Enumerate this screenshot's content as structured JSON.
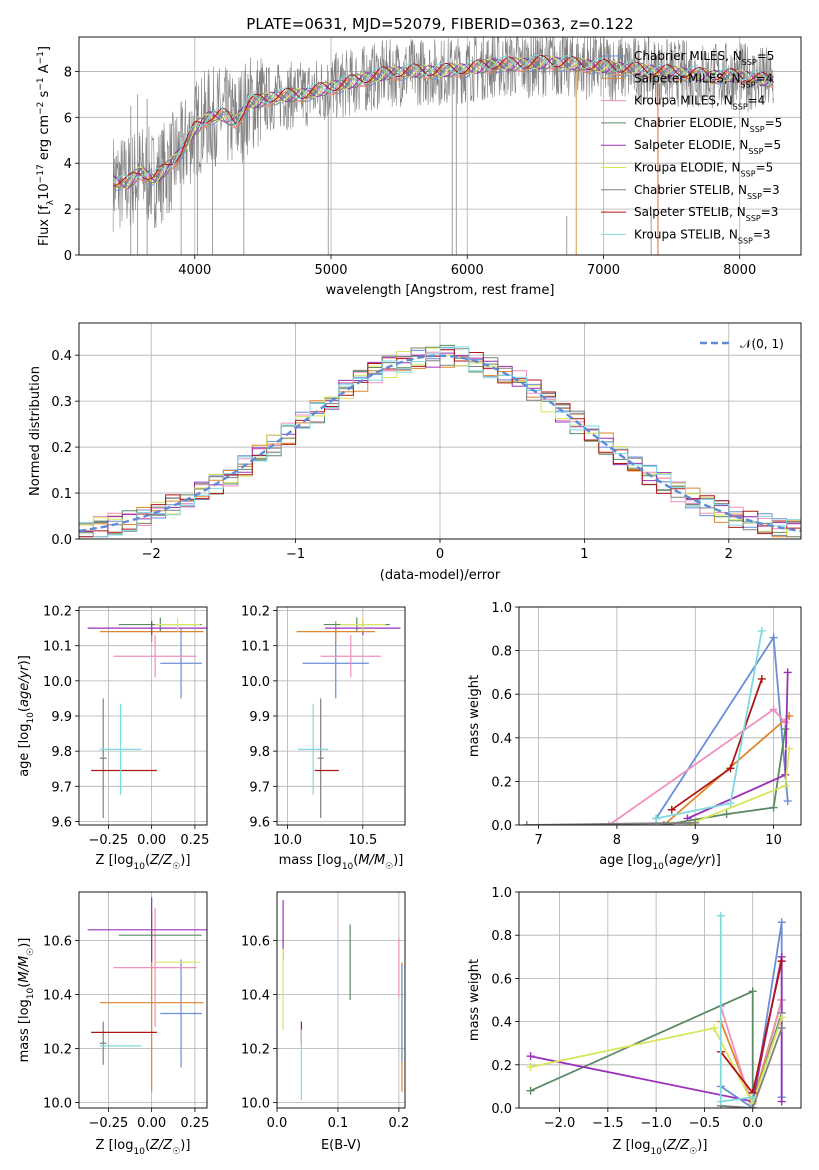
{
  "figure": {
    "title": "PLATE=0631, MJD=52079, FIBERID=0363, z=0.122"
  },
  "colors": {
    "Chabrier MILES": "#6a8fd6",
    "Salpeter MILES": "#e0862a",
    "Kroupa MILES": "#f08fc0",
    "Chabrier ELODIE": "#5c8a65",
    "Salpeter ELODIE": "#9b30b8",
    "Kroupa ELODIE": "#d8e65a",
    "Chabrier STELIB": "#808080",
    "Salpeter STELIB": "#b01515",
    "Kroupa STELIB": "#7fd9e0",
    "data": "#808080",
    "normal": "#5f8ad8"
  },
  "chart_data": [
    {
      "id": "spectrum",
      "type": "line",
      "xlabel": "wavelength [Angstrom, rest frame]",
      "ylabel": "Flux [f_λ10^-17 erg cm^-2 s^-1 A^-1]",
      "xlim": [
        3150,
        8450
      ],
      "ylim": [
        0,
        9.5
      ],
      "xticks": [
        4000,
        5000,
        6000,
        7000,
        8000
      ],
      "yticks": [
        0,
        2,
        4,
        6,
        8
      ],
      "legend_placement": "upper right",
      "legend": [
        {
          "name": "Chabrier MILES",
          "n": "5"
        },
        {
          "name": "Salpeter MILES",
          "n": "4"
        },
        {
          "name": "Kroupa MILES",
          "n": "4"
        },
        {
          "name": "Chabrier ELODIE",
          "n": "5"
        },
        {
          "name": "Salpeter ELODIE",
          "n": "5"
        },
        {
          "name": "Kroupa ELODIE",
          "n": "5"
        },
        {
          "name": "Chabrier STELIB",
          "n": "3"
        },
        {
          "name": "Salpeter STELIB",
          "n": "3"
        },
        {
          "name": "Kroupa STELIB",
          "n": "3"
        }
      ],
      "continuum": {
        "x": [
          3400,
          3500,
          3600,
          3700,
          3800,
          3900,
          4000,
          4100,
          4200,
          4300,
          4400,
          4600,
          4800,
          5000,
          5200,
          5400,
          5600,
          5800,
          6000,
          6200,
          6400,
          6600,
          6800,
          7000,
          7200,
          7400,
          7600,
          7800,
          8000,
          8200
        ],
        "y": [
          3.2,
          3.1,
          3.6,
          3.3,
          3.8,
          4.5,
          5.5,
          6.0,
          6.1,
          5.8,
          6.6,
          6.9,
          7.0,
          7.3,
          7.6,
          7.9,
          8.0,
          8.0,
          8.1,
          8.3,
          8.3,
          8.4,
          8.3,
          8.2,
          8.1,
          8.0,
          7.9,
          7.8,
          7.8,
          7.6
        ]
      }
    },
    {
      "id": "residuals",
      "type": "line",
      "xlabel": "(data-model)/error",
      "ylabel": "Normed distribution",
      "xlim": [
        -2.5,
        2.5
      ],
      "ylim": [
        0,
        0.47
      ],
      "xticks": [
        -2,
        -1,
        0,
        1,
        2
      ],
      "yticks": [
        0.0,
        0.1,
        0.2,
        0.3,
        0.4
      ],
      "legend": "𝒩(0, 1)",
      "bin_width": 0.1
    },
    {
      "id": "age_vs_Z",
      "type": "scatter",
      "xlabel": "Z [log10(Z/Z☉)]",
      "ylabel": "age  [log10(age/yr)]",
      "xlim": [
        -0.42,
        0.32
      ],
      "ylim": [
        9.59,
        10.21
      ],
      "xticks": [
        -0.25,
        0.0,
        0.25
      ],
      "yticks": [
        9.6,
        9.7,
        9.8,
        9.9,
        10.0,
        10.1,
        10.2
      ],
      "points": [
        {
          "s": "Chabrier MILES",
          "x": 0.17,
          "y": 10.05,
          "xe": 0.12,
          "ye": 0.1
        },
        {
          "s": "Salpeter MILES",
          "x": 0.0,
          "y": 10.14,
          "xe": 0.3,
          "ye": 0.03
        },
        {
          "s": "Kroupa MILES",
          "x": 0.02,
          "y": 10.07,
          "xe": 0.24,
          "ye": 0.06
        },
        {
          "s": "Chabrier ELODIE",
          "x": 0.05,
          "y": 10.16,
          "xe": 0.24,
          "ye": 0.02
        },
        {
          "s": "Salpeter ELODIE",
          "x": 0.0,
          "y": 10.15,
          "xe": 0.37,
          "ye": 0.02
        },
        {
          "s": "Kroupa ELODIE",
          "x": 0.15,
          "y": 10.16,
          "xe": 0.13,
          "ye": 0.02
        },
        {
          "s": "Chabrier STELIB",
          "x": -0.28,
          "y": 9.78,
          "xe": 0.02,
          "ye": 0.17
        },
        {
          "s": "Salpeter STELIB",
          "x": -0.16,
          "y": 9.745,
          "xe": 0.19,
          "ye": 0.0
        },
        {
          "s": "Kroupa STELIB",
          "x": -0.18,
          "y": 9.805,
          "xe": 0.12,
          "ye": 0.13
        }
      ]
    },
    {
      "id": "age_vs_mass",
      "type": "scatter",
      "xlabel": "mass [log10(M/M☉)]",
      "xlim": [
        9.93,
        10.78
      ],
      "ylim": [
        9.59,
        10.21
      ],
      "xticks": [
        10.0,
        10.5
      ],
      "xticklabels": [
        "10.0",
        "10.5"
      ],
      "yticks": [
        9.6,
        9.7,
        9.8,
        9.9,
        10.0,
        10.1,
        10.2
      ],
      "points": [
        {
          "s": "Chabrier MILES",
          "x": 10.32,
          "y": 10.05,
          "xe": 0.22,
          "ye": 0.1
        },
        {
          "s": "Salpeter MILES",
          "x": 10.32,
          "y": 10.14,
          "xe": 0.26,
          "ye": 0.03
        },
        {
          "s": "Kroupa MILES",
          "x": 10.42,
          "y": 10.07,
          "xe": 0.2,
          "ye": 0.06
        },
        {
          "s": "Chabrier ELODIE",
          "x": 10.46,
          "y": 10.16,
          "xe": 0.22,
          "ye": 0.02
        },
        {
          "s": "Salpeter ELODIE",
          "x": 10.5,
          "y": 10.15,
          "xe": 0.25,
          "ye": 0.02
        },
        {
          "s": "Kroupa ELODIE",
          "x": 10.5,
          "y": 10.16,
          "xe": 0.15,
          "ye": 0.02
        },
        {
          "s": "Chabrier STELIB",
          "x": 10.22,
          "y": 9.78,
          "xe": 0.02,
          "ye": 0.17
        },
        {
          "s": "Salpeter STELIB",
          "x": 10.26,
          "y": 9.745,
          "xe": 0.08,
          "ye": 0.0
        },
        {
          "s": "Kroupa STELIB",
          "x": 10.17,
          "y": 9.805,
          "xe": 0.1,
          "ye": 0.13
        }
      ]
    },
    {
      "id": "mass_weight_vs_age",
      "type": "line",
      "xlabel": "age  [log10(age/yr)]",
      "ylabel": "mass weight",
      "xlim": [
        6.75,
        10.35
      ],
      "ylim": [
        0,
        1.0
      ],
      "xticks": [
        7,
        8,
        9,
        10
      ],
      "yticks": [
        0.0,
        0.2,
        0.4,
        0.6,
        0.8,
        1.0
      ],
      "series": [
        {
          "s": "Chabrier MILES",
          "x": [
            8.5,
            10.0,
            10.18
          ],
          "y": [
            0.03,
            0.86,
            0.11
          ]
        },
        {
          "s": "Salpeter MILES",
          "x": [
            8.6,
            10.2
          ],
          "y": [
            0.0,
            0.5
          ]
        },
        {
          "s": "Kroupa MILES",
          "x": [
            7.9,
            10.0,
            10.15
          ],
          "y": [
            0.0,
            0.53,
            0.47
          ]
        },
        {
          "s": "Chabrier ELODIE",
          "x": [
            8.6,
            9.4,
            10.0,
            10.15
          ],
          "y": [
            0.0,
            0.05,
            0.08,
            0.44
          ]
        },
        {
          "s": "Salpeter ELODIE",
          "x": [
            8.9,
            10.15,
            10.18
          ],
          "y": [
            0.03,
            0.23,
            0.7
          ]
        },
        {
          "s": "Kroupa ELODIE",
          "x": [
            8.9,
            10.15,
            10.2
          ],
          "y": [
            0.0,
            0.18,
            0.35
          ]
        },
        {
          "s": "Chabrier STELIB",
          "x": [
            6.85,
            9.0
          ],
          "y": [
            0.0,
            0.01
          ]
        },
        {
          "s": "Salpeter STELIB",
          "x": [
            8.7,
            9.45,
            9.85
          ],
          "y": [
            0.07,
            0.26,
            0.67
          ]
        },
        {
          "s": "Kroupa STELIB",
          "x": [
            8.5,
            9.45,
            9.85
          ],
          "y": [
            0.03,
            0.1,
            0.89
          ]
        }
      ]
    },
    {
      "id": "mass_vs_Z",
      "type": "scatter",
      "xlabel": "Z [log10(Z/Z☉)]",
      "ylabel": "mass [log10(M/M☉)]",
      "xlim": [
        -0.42,
        0.32
      ],
      "ylim": [
        9.98,
        10.78
      ],
      "xticks": [
        -0.25,
        0.0,
        0.25
      ],
      "yticks": [
        10.0,
        10.2,
        10.4,
        10.6
      ],
      "points": [
        {
          "s": "Chabrier MILES",
          "x": 0.17,
          "y": 10.33,
          "xe": 0.12,
          "ye": 0.2
        },
        {
          "s": "Salpeter MILES",
          "x": 0.0,
          "y": 10.37,
          "xe": 0.3,
          "ye": 0.33
        },
        {
          "s": "Kroupa MILES",
          "x": 0.02,
          "y": 10.5,
          "xe": 0.24,
          "ye": 0.22
        },
        {
          "s": "Chabrier ELODIE",
          "x": 0.05,
          "y": 10.62,
          "xe": 0.24,
          "ye": 0.0
        },
        {
          "s": "Salpeter ELODIE",
          "x": 0.0,
          "y": 10.64,
          "xe": 0.37,
          "ye": 0.12
        },
        {
          "s": "Kroupa ELODIE",
          "x": 0.15,
          "y": 10.52,
          "xe": 0.13,
          "ye": 0.0
        },
        {
          "s": "Chabrier STELIB",
          "x": -0.28,
          "y": 10.22,
          "xe": 0.02,
          "ye": 0.08
        },
        {
          "s": "Salpeter STELIB",
          "x": -0.16,
          "y": 10.26,
          "xe": 0.19,
          "ye": 0.0
        },
        {
          "s": "Kroupa STELIB",
          "x": -0.18,
          "y": 10.21,
          "xe": 0.12,
          "ye": 0.0
        }
      ]
    },
    {
      "id": "mass_vs_EBV",
      "type": "scatter",
      "xlabel": "E(B-V)",
      "xlim": [
        0.0,
        0.21
      ],
      "ylim": [
        9.98,
        10.78
      ],
      "xticks": [
        0.0,
        0.1,
        0.2
      ],
      "yticks": [
        10.0,
        10.2,
        10.4,
        10.6
      ],
      "points": [
        {
          "s": "Salpeter ELODIE",
          "x": 0.01,
          "y": 10.64,
          "ye": 0.11
        },
        {
          "s": "Kroupa ELODIE",
          "x": 0.01,
          "y": 10.42,
          "ye": 0.15
        },
        {
          "s": "Salpeter STELIB",
          "x": 0.04,
          "y": 10.26,
          "ye": 0.04
        },
        {
          "s": "Kroupa STELIB",
          "x": 0.04,
          "y": 10.14,
          "ye": 0.13
        },
        {
          "s": "Chabrier ELODIE",
          "x": 0.12,
          "y": 10.52,
          "ye": 0.14
        },
        {
          "s": "Kroupa MILES",
          "x": 0.2,
          "y": 10.5,
          "ye": 0.11
        },
        {
          "s": "Salpeter MILES",
          "x": 0.205,
          "y": 10.28,
          "ye": 0.24
        },
        {
          "s": "Chabrier MILES",
          "x": 0.205,
          "y": 10.33,
          "ye": 0.18
        }
      ]
    },
    {
      "id": "mass_weight_vs_Z",
      "type": "line",
      "xlabel": "Z [log10(Z/Z☉)]",
      "ylabel": "mass weight",
      "xlim": [
        -2.42,
        0.5
      ],
      "ylim": [
        0,
        1.0
      ],
      "xticks": [
        -2.0,
        -1.5,
        -1.0,
        -0.5,
        0.0
      ],
      "xticklabels": [
        "−2.0",
        "−1.5",
        "−1.0",
        "−0.5",
        "0.0"
      ],
      "yticks": [
        0.0,
        0.2,
        0.4,
        0.6,
        0.8,
        1.0
      ],
      "series": [
        {
          "s": "Chabrier MILES",
          "x": [
            -0.33,
            0.0,
            0.3,
            0.3
          ],
          "y": [
            0.1,
            0.0,
            0.86,
            0.05
          ]
        },
        {
          "s": "Salpeter MILES",
          "x": [
            -0.33,
            0.0,
            0.3
          ],
          "y": [
            0.4,
            0.02,
            0.5
          ]
        },
        {
          "s": "Kroupa MILES",
          "x": [
            -0.33,
            0.0,
            0.3
          ],
          "y": [
            0.47,
            0.0,
            0.5
          ]
        },
        {
          "s": "Chabrier ELODIE",
          "x": [
            -2.3,
            0.0,
            0.0,
            0.3
          ],
          "y": [
            0.08,
            0.54,
            0.02,
            0.44
          ]
        },
        {
          "s": "Salpeter ELODIE",
          "x": [
            -2.3,
            0.0,
            0.3,
            0.3
          ],
          "y": [
            0.24,
            0.03,
            0.7,
            0.03
          ]
        },
        {
          "s": "Kroupa ELODIE",
          "x": [
            -2.3,
            -0.4,
            0.0,
            0.3
          ],
          "y": [
            0.19,
            0.37,
            0.02,
            0.42
          ]
        },
        {
          "s": "Chabrier STELIB",
          "x": [
            -0.33,
            0.0,
            0.3
          ],
          "y": [
            0.01,
            0.0,
            0.37
          ]
        },
        {
          "s": "Salpeter STELIB",
          "x": [
            -0.33,
            0.0,
            0.3
          ],
          "y": [
            0.26,
            0.07,
            0.68
          ]
        },
        {
          "s": "Kroupa STELIB",
          "x": [
            -0.33,
            -0.33,
            0.0
          ],
          "y": [
            0.89,
            0.03,
            0.05
          ]
        }
      ]
    }
  ]
}
